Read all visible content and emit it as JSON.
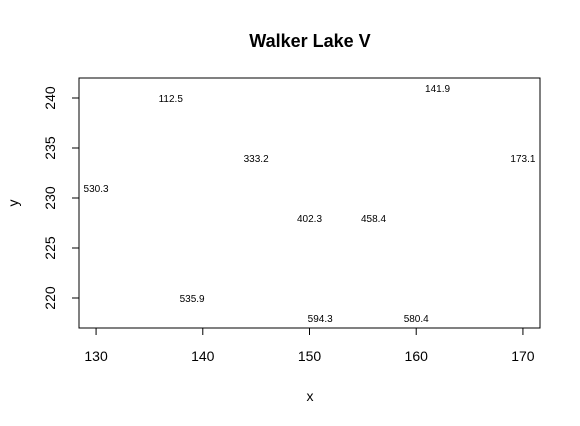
{
  "chart_data": {
    "type": "scatter",
    "title": "Walker Lake V",
    "xlabel": "x",
    "ylabel": "y",
    "xlim": [
      128.4,
      171.6
    ],
    "ylim": [
      217,
      242
    ],
    "x_ticks": [
      130,
      140,
      150,
      160,
      170
    ],
    "y_ticks": [
      220,
      225,
      230,
      235,
      240
    ],
    "x_tick_labels": [
      "130",
      "140",
      "150",
      "160",
      "170"
    ],
    "y_tick_labels": [
      "220",
      "225",
      "230",
      "235",
      "240"
    ],
    "grid": false,
    "points": [
      {
        "x": 137,
        "y": 240,
        "label": "112.5"
      },
      {
        "x": 162,
        "y": 241,
        "label": "141.9"
      },
      {
        "x": 145,
        "y": 234,
        "label": "333.2"
      },
      {
        "x": 170,
        "y": 234,
        "label": "173.1"
      },
      {
        "x": 130,
        "y": 231,
        "label": "530.3"
      },
      {
        "x": 150,
        "y": 228,
        "label": "402.3"
      },
      {
        "x": 156,
        "y": 228,
        "label": "458.4"
      },
      {
        "x": 139,
        "y": 220,
        "label": "535.9"
      },
      {
        "x": 151,
        "y": 218,
        "label": "594.3"
      },
      {
        "x": 160,
        "y": 218,
        "label": "580.4"
      }
    ]
  }
}
